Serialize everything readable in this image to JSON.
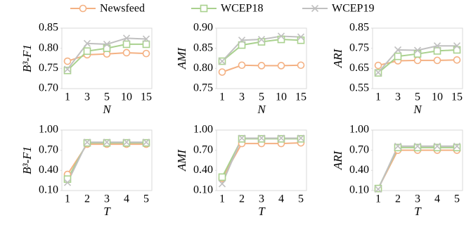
{
  "chart_data": [
    {
      "type": "line",
      "legend": "top",
      "xlabel": "N",
      "ylabel": "B³-F1",
      "categories": [
        "1",
        "3",
        "5",
        "10",
        "15"
      ],
      "ylim": [
        0.7,
        0.85
      ],
      "yticks": [
        {
          "value": 0.7,
          "label": "0.70"
        },
        0.75,
        {
          "value": 0.8,
          "label": "0.80"
        },
        0.85
      ],
      "series": [
        {
          "name": "Newsfeed",
          "color": "#f4b183",
          "marker": "circle",
          "values": [
            0.768,
            0.784,
            0.786,
            0.789,
            0.787
          ]
        },
        {
          "name": "WCEP18",
          "color": "#a9d18e",
          "marker": "square",
          "values": [
            0.745,
            0.793,
            0.8,
            0.81,
            0.81
          ]
        },
        {
          "name": "WCEP19",
          "color": "#c0c0c0",
          "marker": "x",
          "values": [
            0.748,
            0.812,
            0.81,
            0.825,
            0.823
          ]
        }
      ]
    },
    {
      "type": "line",
      "xlabel": "N",
      "ylabel": "AMI",
      "categories": [
        "1",
        "3",
        "5",
        "10",
        "15"
      ],
      "ylim": [
        0.75,
        0.9
      ],
      "yticks": [
        0.75,
        {
          "value": 0.8,
          "label": "0.80"
        },
        0.85,
        {
          "value": 0.9,
          "label": "0.90"
        }
      ],
      "series": [
        {
          "name": "Newsfeed",
          "color": "#f4b183",
          "marker": "circle",
          "values": [
            0.791,
            0.808,
            0.807,
            0.807,
            0.808
          ]
        },
        {
          "name": "WCEP18",
          "color": "#a9d18e",
          "marker": "square",
          "values": [
            0.818,
            0.858,
            0.866,
            0.872,
            0.87
          ]
        },
        {
          "name": "WCEP19",
          "color": "#c0c0c0",
          "marker": "x",
          "values": [
            0.818,
            0.87,
            0.872,
            0.88,
            0.878
          ]
        }
      ]
    },
    {
      "type": "line",
      "xlabel": "N",
      "ylabel": "ARI",
      "categories": [
        "1",
        "3",
        "5",
        "10",
        "15"
      ],
      "ylim": [
        0.55,
        0.85
      ],
      "yticks": [
        0.55,
        0.65,
        0.75,
        0.85
      ],
      "series": [
        {
          "name": "Newsfeed",
          "color": "#f4b183",
          "marker": "circle",
          "values": [
            0.665,
            0.688,
            0.69,
            0.69,
            0.692
          ]
        },
        {
          "name": "WCEP18",
          "color": "#a9d18e",
          "marker": "square",
          "values": [
            0.628,
            0.71,
            0.722,
            0.737,
            0.742
          ]
        },
        {
          "name": "WCEP19",
          "color": "#c0c0c0",
          "marker": "x",
          "values": [
            0.63,
            0.742,
            0.74,
            0.762,
            0.762
          ]
        }
      ]
    },
    {
      "type": "line",
      "xlabel": "T",
      "ylabel": "B³-F1",
      "categories": [
        "1",
        "2",
        "3",
        "4",
        "5"
      ],
      "ylim": [
        0.1,
        1.0
      ],
      "yticks": [
        {
          "value": 0.1,
          "label": "0.10"
        },
        {
          "value": 0.4,
          "label": "0.40"
        },
        {
          "value": 0.7,
          "label": "0.70"
        },
        {
          "value": 1.0,
          "label": "1.00"
        }
      ],
      "series": [
        {
          "name": "Newsfeed",
          "color": "#f4b183",
          "marker": "circle",
          "values": [
            0.34,
            0.79,
            0.79,
            0.79,
            0.79
          ]
        },
        {
          "name": "WCEP18",
          "color": "#a9d18e",
          "marker": "square",
          "values": [
            0.27,
            0.81,
            0.81,
            0.81,
            0.81
          ]
        },
        {
          "name": "WCEP19",
          "color": "#c0c0c0",
          "marker": "x",
          "values": [
            0.22,
            0.82,
            0.82,
            0.82,
            0.82
          ]
        }
      ]
    },
    {
      "type": "line",
      "xlabel": "T",
      "ylabel": "AMI",
      "categories": [
        "1",
        "2",
        "3",
        "4",
        "5"
      ],
      "ylim": [
        0.1,
        1.0
      ],
      "yticks": [
        {
          "value": 0.1,
          "label": "0.10"
        },
        {
          "value": 0.4,
          "label": "0.40"
        },
        {
          "value": 0.7,
          "label": "0.70"
        },
        {
          "value": 1.0,
          "label": "1.00"
        }
      ],
      "series": [
        {
          "name": "Newsfeed",
          "color": "#f4b183",
          "marker": "circle",
          "values": [
            0.28,
            0.8,
            0.8,
            0.8,
            0.81
          ]
        },
        {
          "name": "WCEP18",
          "color": "#a9d18e",
          "marker": "square",
          "values": [
            0.3,
            0.87,
            0.87,
            0.87,
            0.87
          ]
        },
        {
          "name": "WCEP19",
          "color": "#c0c0c0",
          "marker": "x",
          "values": [
            0.2,
            0.88,
            0.88,
            0.88,
            0.88
          ]
        }
      ]
    },
    {
      "type": "line",
      "xlabel": "T",
      "ylabel": "ARI",
      "categories": [
        "1",
        "2",
        "3",
        "4",
        "5"
      ],
      "ylim": [
        0.1,
        1.0
      ],
      "yticks": [
        {
          "value": 0.1,
          "label": "0.10"
        },
        {
          "value": 0.4,
          "label": "0.40"
        },
        {
          "value": 0.7,
          "label": "0.70"
        },
        {
          "value": 1.0,
          "label": "1.00"
        }
      ],
      "series": [
        {
          "name": "Newsfeed",
          "color": "#f4b183",
          "marker": "circle",
          "values": [
            0.13,
            0.7,
            0.7,
            0.7,
            0.7
          ]
        },
        {
          "name": "WCEP18",
          "color": "#a9d18e",
          "marker": "square",
          "values": [
            0.13,
            0.74,
            0.74,
            0.74,
            0.74
          ]
        },
        {
          "name": "WCEP19",
          "color": "#c0c0c0",
          "marker": "x",
          "values": [
            0.12,
            0.76,
            0.76,
            0.76,
            0.76
          ]
        }
      ]
    }
  ]
}
